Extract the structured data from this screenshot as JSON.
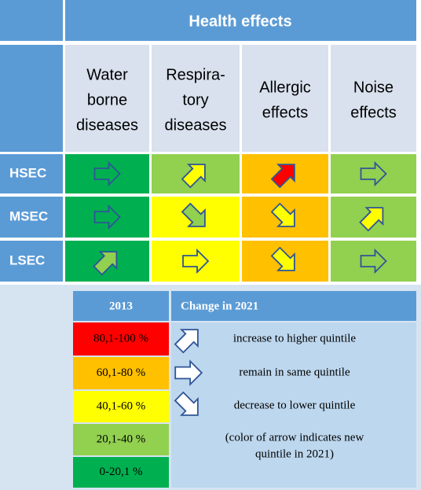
{
  "header": {
    "title": "Health effects"
  },
  "columns": [
    {
      "lines": [
        "Water",
        "borne",
        "diseases"
      ]
    },
    {
      "lines": [
        "Respira-",
        "tory",
        "diseases"
      ]
    },
    {
      "lines": [
        "Allergic",
        "effects"
      ]
    },
    {
      "lines": [
        "Noise",
        "effects"
      ]
    }
  ],
  "rows": [
    {
      "label": "HSEC",
      "cells": [
        {
          "color": "#00b050",
          "arrow": "right",
          "arrow_color": "#00b050"
        },
        {
          "color": "#92d050",
          "arrow": "up",
          "arrow_color": "#ffff00"
        },
        {
          "color": "#ffc000",
          "arrow": "up",
          "arrow_color": "#ff0000"
        },
        {
          "color": "#92d050",
          "arrow": "right",
          "arrow_color": "#92d050"
        }
      ]
    },
    {
      "label": "MSEC",
      "cells": [
        {
          "color": "#00b050",
          "arrow": "right",
          "arrow_color": "#00b050"
        },
        {
          "color": "#ffff00",
          "arrow": "down",
          "arrow_color": "#92d050"
        },
        {
          "color": "#ffc000",
          "arrow": "down",
          "arrow_color": "#ffff00"
        },
        {
          "color": "#92d050",
          "arrow": "up",
          "arrow_color": "#ffff00"
        }
      ]
    },
    {
      "label": "LSEC",
      "cells": [
        {
          "color": "#00b050",
          "arrow": "up",
          "arrow_color": "#92d050"
        },
        {
          "color": "#ffff00",
          "arrow": "right",
          "arrow_color": "#ffff00"
        },
        {
          "color": "#ffc000",
          "arrow": "down",
          "arrow_color": "#ffff00"
        },
        {
          "color": "#92d050",
          "arrow": "right",
          "arrow_color": "#92d050"
        }
      ]
    }
  ],
  "legend": {
    "header": [
      "2013",
      "Change in 2021"
    ],
    "quintiles": [
      {
        "label": "80,1-100 %",
        "color": "#ff0000"
      },
      {
        "label": "60,1-80 %",
        "color": "#ffc000"
      },
      {
        "label": "40,1-60 %",
        "color": "#ffff00"
      },
      {
        "label": "20,1-40 %",
        "color": "#92d050"
      },
      {
        "label": "0-20,1 %",
        "color": "#00b050"
      }
    ],
    "changes": [
      {
        "arrow": "up",
        "text": "increase to higher quintile"
      },
      {
        "arrow": "right",
        "text": "remain in same quintile"
      },
      {
        "arrow": "down",
        "text": "decrease to lower quintile"
      }
    ],
    "note": [
      "(color of arrow indicates new",
      "quintile in 2021)"
    ]
  }
}
